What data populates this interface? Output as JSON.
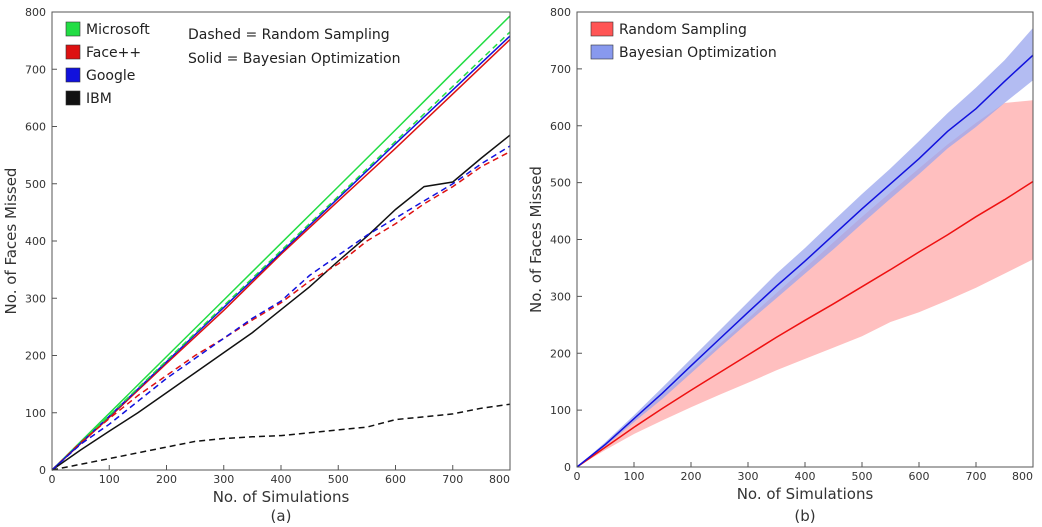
{
  "chart_data": [
    {
      "panel": "a",
      "type": "line",
      "caption": "(a)",
      "xlabel": "No. of Simulations",
      "ylabel": "No. of Faces Missed",
      "xlim": [
        0,
        800
      ],
      "ylim": [
        0,
        800
      ],
      "xticks": [
        0,
        100,
        200,
        300,
        400,
        500,
        600,
        700,
        800
      ],
      "yticks": [
        0,
        100,
        200,
        300,
        400,
        500,
        600,
        700,
        800
      ],
      "grid": false,
      "legend_position": "top-left",
      "legend": [
        {
          "name": "Microsoft",
          "color": "#22dd44"
        },
        {
          "name": "Face++",
          "color": "#dd1111"
        },
        {
          "name": "Google",
          "color": "#1111dd"
        },
        {
          "name": "IBM",
          "color": "#111111"
        }
      ],
      "annotations": [
        "Dashed = Random Sampling",
        "Solid = Bayesian Optimization"
      ],
      "series": [
        {
          "name": "Microsoft",
          "style": "solid",
          "color": "#22dd44",
          "x": [
            0,
            100,
            200,
            300,
            400,
            500,
            600,
            700,
            800
          ],
          "y": [
            0,
            99,
            198,
            297,
            396,
            495,
            594,
            694,
            793
          ]
        },
        {
          "name": "Face++",
          "style": "solid",
          "color": "#dd1111",
          "x": [
            0,
            100,
            200,
            300,
            400,
            500,
            600,
            700,
            800
          ],
          "y": [
            0,
            92,
            186,
            279,
            377,
            470,
            562,
            657,
            752
          ]
        },
        {
          "name": "Google",
          "style": "solid",
          "color": "#1111dd",
          "x": [
            0,
            100,
            200,
            300,
            400,
            500,
            600,
            700,
            800
          ],
          "y": [
            0,
            94,
            189,
            284,
            380,
            475,
            570,
            664,
            758
          ]
        },
        {
          "name": "IBM",
          "style": "solid",
          "color": "#111111",
          "x": [
            0,
            50,
            100,
            150,
            200,
            250,
            300,
            350,
            400,
            450,
            500,
            550,
            600,
            650,
            700,
            750,
            800
          ],
          "y": [
            0,
            35,
            68,
            100,
            135,
            170,
            205,
            240,
            280,
            320,
            365,
            408,
            455,
            495,
            503,
            545,
            585
          ]
        },
        {
          "name": "Microsoft",
          "style": "dashed",
          "color": "#22dd44",
          "x": [
            0,
            100,
            200,
            300,
            400,
            500,
            600,
            700,
            800
          ],
          "y": [
            0,
            95,
            191,
            287,
            383,
            478,
            574,
            670,
            765
          ]
        },
        {
          "name": "Face++",
          "style": "dashed",
          "color": "#dd1111",
          "x": [
            0,
            50,
            100,
            150,
            200,
            250,
            300,
            350,
            400,
            450,
            500,
            550,
            600,
            650,
            700,
            750,
            800
          ],
          "y": [
            0,
            48,
            90,
            130,
            165,
            200,
            230,
            262,
            292,
            330,
            360,
            400,
            430,
            465,
            495,
            530,
            556
          ]
        },
        {
          "name": "Google",
          "style": "dashed",
          "color": "#1111dd",
          "x": [
            0,
            50,
            100,
            150,
            200,
            250,
            300,
            350,
            400,
            450,
            500,
            550,
            600,
            650,
            700,
            750,
            800
          ],
          "y": [
            0,
            45,
            80,
            120,
            160,
            195,
            230,
            265,
            295,
            340,
            375,
            410,
            440,
            470,
            500,
            535,
            566
          ]
        },
        {
          "name": "IBM",
          "style": "dashed",
          "color": "#111111",
          "x": [
            0,
            50,
            100,
            150,
            200,
            250,
            300,
            350,
            400,
            450,
            500,
            550,
            600,
            650,
            700,
            750,
            800
          ],
          "y": [
            0,
            10,
            20,
            30,
            40,
            50,
            55,
            58,
            60,
            65,
            70,
            75,
            88,
            93,
            98,
            108,
            115
          ]
        }
      ]
    },
    {
      "panel": "b",
      "type": "line",
      "caption": "(b)",
      "xlabel": "No. of Simulations",
      "ylabel": "No. of Faces Missed",
      "xlim": [
        0,
        800
      ],
      "ylim": [
        0,
        800
      ],
      "xticks": [
        0,
        100,
        200,
        300,
        400,
        500,
        600,
        700,
        800
      ],
      "yticks": [
        0,
        100,
        200,
        300,
        400,
        500,
        600,
        700,
        800
      ],
      "grid": false,
      "legend_position": "top-left",
      "legend": [
        {
          "name": "Random Sampling",
          "color": "#ff5555"
        },
        {
          "name": "Bayesian Optimization",
          "color": "#8899ee"
        }
      ],
      "series": [
        {
          "name": "Random Sampling",
          "color": "#ee1111",
          "band_color": "#ffaaaa",
          "x": [
            0,
            50,
            100,
            150,
            200,
            250,
            300,
            350,
            400,
            450,
            500,
            550,
            600,
            650,
            700,
            750,
            800
          ],
          "y": [
            0,
            35,
            70,
            103,
            135,
            166,
            197,
            228,
            258,
            287,
            317,
            347,
            378,
            408,
            440,
            470,
            502
          ],
          "upper": [
            0,
            40,
            83,
            127,
            171,
            216,
            261,
            306,
            350,
            395,
            440,
            483,
            525,
            567,
            605,
            640,
            645
          ],
          "lower": [
            0,
            30,
            58,
            82,
            105,
            127,
            148,
            170,
            190,
            210,
            230,
            255,
            272,
            293,
            315,
            340,
            365
          ]
        },
        {
          "name": "Bayesian Optimization",
          "color": "#1111dd",
          "band_color": "#99a6ee",
          "x": [
            0,
            50,
            100,
            150,
            200,
            250,
            300,
            350,
            400,
            450,
            500,
            550,
            600,
            650,
            700,
            750,
            800
          ],
          "y": [
            0,
            40,
            85,
            130,
            178,
            225,
            272,
            318,
            362,
            408,
            454,
            498,
            542,
            590,
            630,
            678,
            724
          ],
          "upper": [
            0,
            44,
            91,
            140,
            190,
            240,
            290,
            340,
            385,
            433,
            480,
            525,
            573,
            622,
            667,
            715,
            772
          ],
          "lower": [
            0,
            37,
            79,
            120,
            165,
            210,
            254,
            297,
            340,
            383,
            428,
            472,
            515,
            560,
            598,
            640,
            680
          ]
        }
      ]
    }
  ]
}
